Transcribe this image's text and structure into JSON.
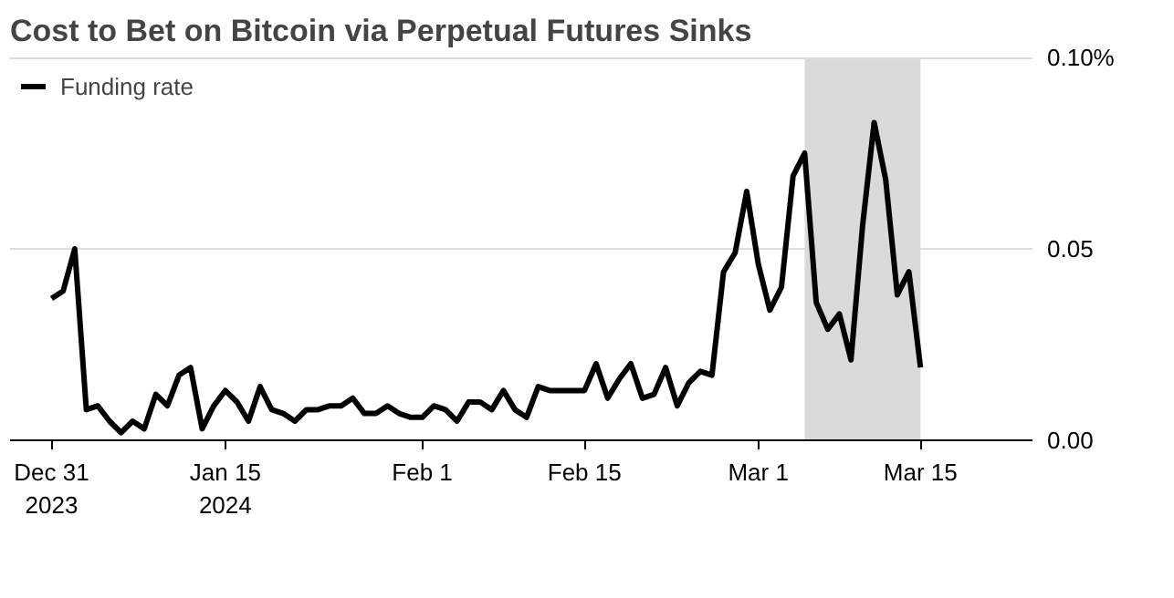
{
  "chart_data": {
    "type": "line",
    "title": "Cost to Bet on Bitcoin via Perpetual Futures Sinks",
    "x": [
      "2023-12-31",
      "2024-01-01",
      "2024-01-02",
      "2024-01-03",
      "2024-01-04",
      "2024-01-05",
      "2024-01-06",
      "2024-01-07",
      "2024-01-08",
      "2024-01-09",
      "2024-01-10",
      "2024-01-11",
      "2024-01-12",
      "2024-01-13",
      "2024-01-14",
      "2024-01-15",
      "2024-01-16",
      "2024-01-17",
      "2024-01-18",
      "2024-01-19",
      "2024-01-20",
      "2024-01-21",
      "2024-01-22",
      "2024-01-23",
      "2024-01-24",
      "2024-01-25",
      "2024-01-26",
      "2024-01-27",
      "2024-01-28",
      "2024-01-29",
      "2024-01-30",
      "2024-01-31",
      "2024-02-01",
      "2024-02-02",
      "2024-02-03",
      "2024-02-04",
      "2024-02-05",
      "2024-02-06",
      "2024-02-07",
      "2024-02-08",
      "2024-02-09",
      "2024-02-10",
      "2024-02-11",
      "2024-02-12",
      "2024-02-13",
      "2024-02-14",
      "2024-02-15",
      "2024-02-16",
      "2024-02-17",
      "2024-02-18",
      "2024-02-19",
      "2024-02-20",
      "2024-02-21",
      "2024-02-22",
      "2024-02-23",
      "2024-02-24",
      "2024-02-25",
      "2024-02-26",
      "2024-02-27",
      "2024-02-28",
      "2024-02-29",
      "2024-03-01",
      "2024-03-02",
      "2024-03-03",
      "2024-03-04",
      "2024-03-05",
      "2024-03-06",
      "2024-03-07",
      "2024-03-08",
      "2024-03-09",
      "2024-03-10",
      "2024-03-11",
      "2024-03-12",
      "2024-03-13",
      "2024-03-14",
      "2024-03-15"
    ],
    "series": [
      {
        "name": "Funding rate",
        "color": "#000000",
        "values": [
          0.037,
          0.039,
          0.05,
          0.008,
          0.009,
          0.005,
          0.002,
          0.005,
          0.003,
          0.012,
          0.009,
          0.017,
          0.019,
          0.003,
          0.009,
          0.013,
          0.01,
          0.005,
          0.014,
          0.008,
          0.007,
          0.005,
          0.008,
          0.008,
          0.009,
          0.009,
          0.011,
          0.007,
          0.007,
          0.009,
          0.007,
          0.006,
          0.006,
          0.009,
          0.008,
          0.005,
          0.01,
          0.01,
          0.008,
          0.013,
          0.008,
          0.006,
          0.014,
          0.013,
          0.013,
          0.013,
          0.013,
          0.02,
          0.011,
          0.016,
          0.02,
          0.011,
          0.012,
          0.019,
          0.009,
          0.015,
          0.018,
          0.017,
          0.044,
          0.049,
          0.065,
          0.046,
          0.034,
          0.04,
          0.069,
          0.075,
          0.036,
          0.029,
          0.033,
          0.021,
          0.056,
          0.083,
          0.068,
          0.038,
          0.044,
          0.019
        ]
      }
    ],
    "xlim": [
      "2023-12-27T10:00",
      "2024-03-24T16:00"
    ],
    "xticks": [
      {
        "value": "2023-12-31",
        "label": "Dec 31\n2023"
      },
      {
        "value": "2024-01-15",
        "label": "Jan 15\n2024"
      },
      {
        "value": "2024-02-01",
        "label": "Feb 1"
      },
      {
        "value": "2024-02-15",
        "label": "Feb 15"
      },
      {
        "value": "2024-03-01",
        "label": "Mar 1"
      },
      {
        "value": "2024-03-15",
        "label": "Mar 15"
      }
    ],
    "ylim": [
      0,
      0.1
    ],
    "yticks": [
      {
        "value": 0,
        "label": "0.00"
      },
      {
        "value": 0.05,
        "label": "0.05"
      },
      {
        "value": 0.1,
        "label": "0.10%"
      }
    ],
    "bands": [
      {
        "axis": "x",
        "from": "2024-03-05",
        "to": "2024-03-15",
        "color": "#dadada"
      }
    ],
    "grid": "y",
    "legend": "top left",
    "line_style": "solid",
    "marker": "none"
  }
}
